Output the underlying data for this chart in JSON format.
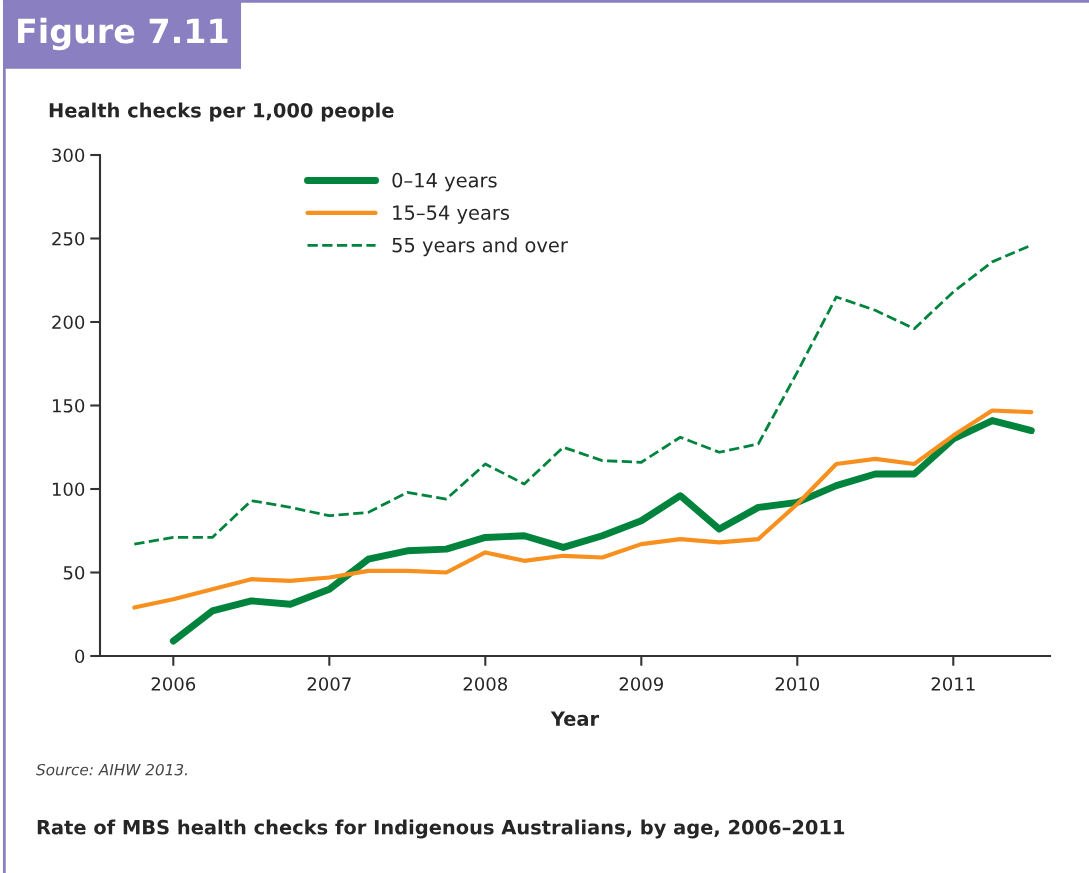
{
  "chart_data": {
    "type": "line",
    "title": "Figure 7.11",
    "subtitle": "Rate of MBS health checks for Indigenous Australians, by age, 2006–2011",
    "ylabel": "Health checks per 1,000 people",
    "xlabel": "Year",
    "annotations": [
      "Source: AIHW 2013."
    ],
    "x": [
      2005.75,
      2006,
      2006.25,
      2006.5,
      2006.75,
      2007,
      2007.25,
      2007.5,
      2007.75,
      2008,
      2008.25,
      2008.5,
      2008.75,
      2009,
      2009.25,
      2009.5,
      2009.75,
      2010,
      2010.25,
      2010.5,
      2010.75,
      2011,
      2011.25,
      2011.5
    ],
    "series": [
      {
        "name": "0–14 years",
        "color": "#00843d",
        "line_style": "solid",
        "values": [
          null,
          9,
          27,
          33,
          31,
          40,
          58,
          63,
          64,
          71,
          72,
          65,
          72,
          81,
          96,
          76,
          89,
          92,
          102,
          109,
          109,
          130,
          141,
          135
        ]
      },
      {
        "name": "15–54 years",
        "color": "#f7901e",
        "line_style": "solid",
        "values": [
          29,
          34,
          40,
          46,
          45,
          47,
          51,
          51,
          50,
          62,
          57,
          60,
          59,
          67,
          70,
          68,
          70,
          91,
          115,
          118,
          115,
          132,
          147,
          146
        ]
      },
      {
        "name": "55 years and over",
        "color": "#00843d",
        "line_style": "dashed",
        "values": [
          67,
          71,
          71,
          93,
          89,
          84,
          86,
          98,
          94,
          115,
          103,
          125,
          117,
          116,
          131,
          122,
          127,
          170,
          215,
          207,
          196,
          218,
          236,
          246
        ]
      }
    ],
    "xlim": [
      2005.53,
      2011.62
    ],
    "xticks": [
      2006,
      2007,
      2008,
      2009,
      2010,
      2011
    ],
    "ylim": [
      0,
      300
    ],
    "yticks": [
      0,
      50,
      100,
      150,
      200,
      250,
      300
    ],
    "grid": false,
    "legend": "top left",
    "marker": "none"
  }
}
